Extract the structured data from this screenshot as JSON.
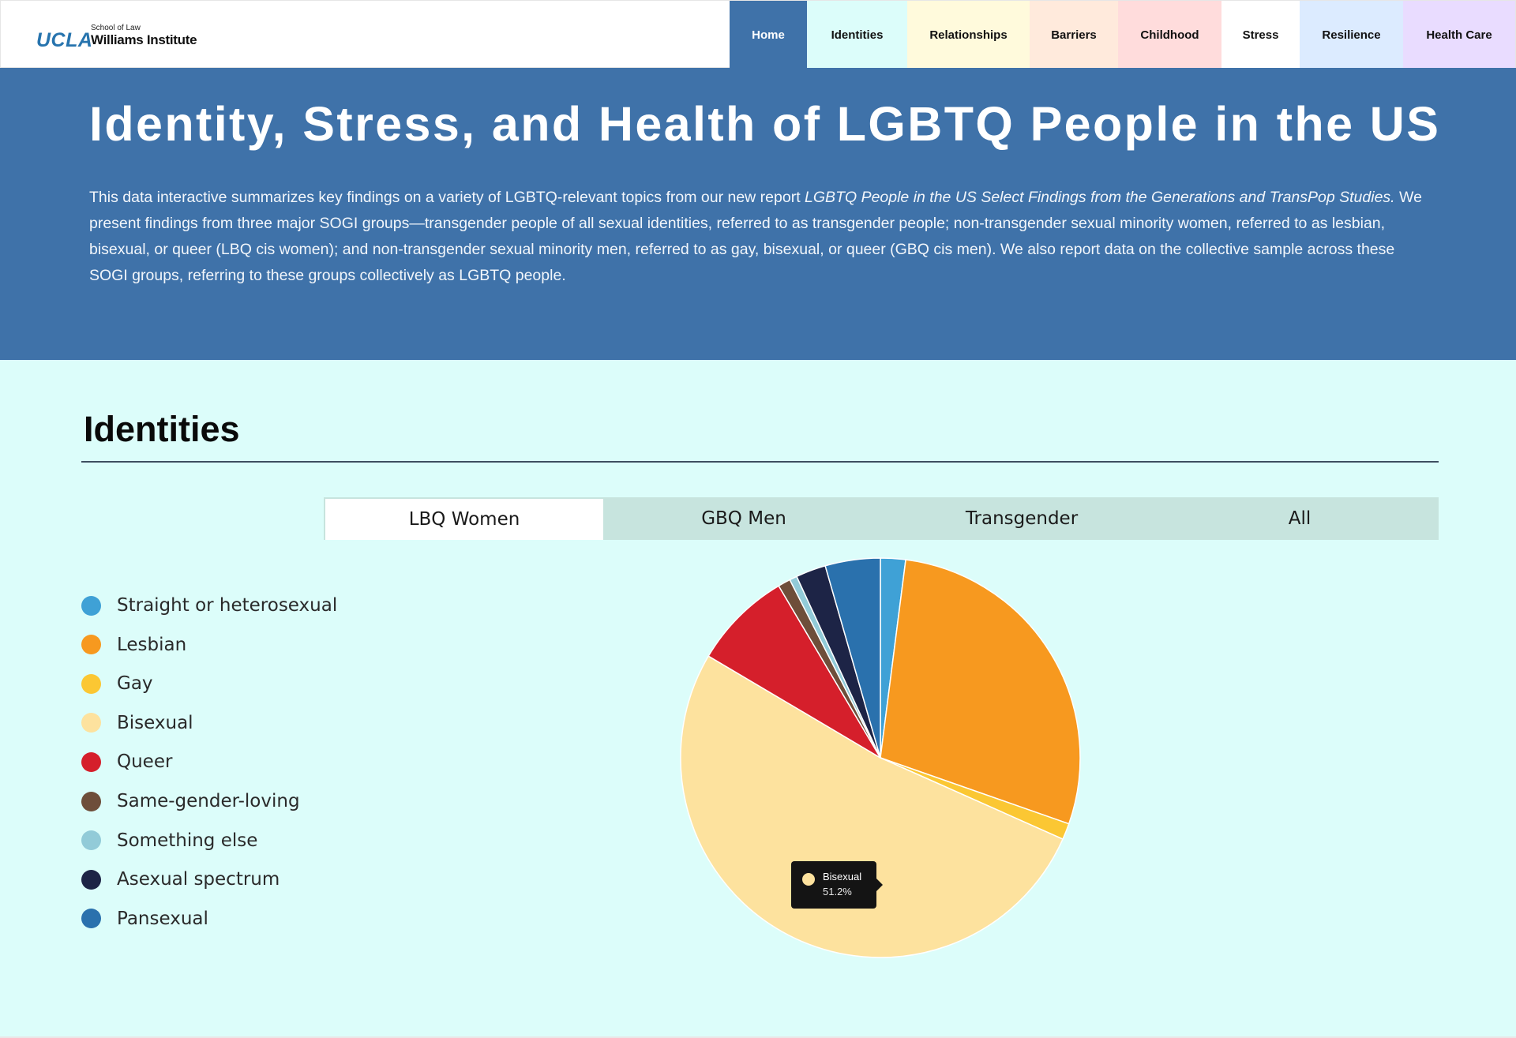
{
  "header": {
    "logo": {
      "ucla": "UCLA",
      "school": "School of Law",
      "institute": "Williams Institute"
    },
    "nav": [
      {
        "label": "Home",
        "bg": "#3f72a9",
        "color": "#ffffff",
        "active": true
      },
      {
        "label": "Identities",
        "bg": "#dcfdfa",
        "color": "#111111"
      },
      {
        "label": "Relationships",
        "bg": "#fffadc",
        "color": "#111111"
      },
      {
        "label": "Barriers",
        "bg": "#ffeadc",
        "color": "#111111"
      },
      {
        "label": "Childhood",
        "bg": "#ffdcdc",
        "color": "#111111"
      },
      {
        "label": "Stress",
        "bg": "#ffffff",
        "color": "#111111"
      },
      {
        "label": "Resilience",
        "bg": "#dcebff",
        "color": "#111111"
      },
      {
        "label": "Health Care",
        "bg": "#e9dcff",
        "color": "#111111"
      }
    ]
  },
  "hero": {
    "title": "Identity, Stress, and Health of LGBTQ People in the US",
    "intro_before": "This data interactive summarizes key findings on a variety of LGBTQ-relevant topics from our new report ",
    "intro_report": "LGBTQ People in the US Select Findings from the Generations and TransPop Studies.",
    "intro_after": " We present findings from three major SOGI groups—transgender people of all sexual identities, referred to as transgender people; non-transgender sexual minority women, referred to as lesbian, bisexual, or queer (LBQ cis women); and non-transgender sexual minority men, referred to as gay, bisexual, or queer (GBQ cis men). We also report data on the collective sample across these SOGI groups, referring to these groups collectively as LGBTQ people."
  },
  "section": {
    "title": "Identities"
  },
  "tabs": [
    {
      "label": "LBQ Women",
      "active": true
    },
    {
      "label": "GBQ Men",
      "active": false
    },
    {
      "label": "Transgender",
      "active": false
    },
    {
      "label": "All",
      "active": false
    }
  ],
  "tooltip": {
    "label": "Bisexual",
    "value": "51.2%",
    "color": "#fde29e"
  },
  "chart_data": {
    "type": "pie",
    "series": [
      {
        "label": "Straight or heterosexual",
        "value": 2.0,
        "color": "#3fa1d6"
      },
      {
        "label": "Lesbian",
        "value": 28.0,
        "color": "#f7991f"
      },
      {
        "label": "Gay",
        "value": 1.3,
        "color": "#fbc733"
      },
      {
        "label": "Bisexual",
        "value": 51.2,
        "color": "#fde29e"
      },
      {
        "label": "Queer",
        "value": 7.9,
        "color": "#d51f2b"
      },
      {
        "label": "Same-gender-loving",
        "value": 1.0,
        "color": "#6e4e3a"
      },
      {
        "label": "Something else",
        "value": 0.6,
        "color": "#92cbd8"
      },
      {
        "label": "Asexual spectrum",
        "value": 2.4,
        "color": "#1d2446"
      },
      {
        "label": "Pansexual",
        "value": 4.4,
        "color": "#2a71ad"
      }
    ]
  }
}
